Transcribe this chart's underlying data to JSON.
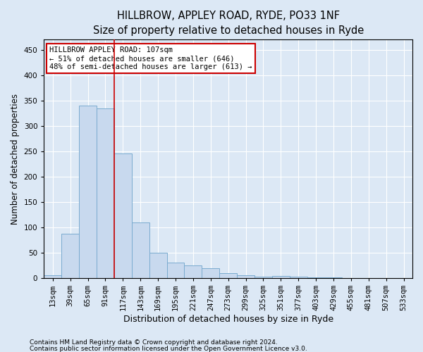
{
  "title": "HILLBROW, APPLEY ROAD, RYDE, PO33 1NF",
  "subtitle": "Size of property relative to detached houses in Ryde",
  "xlabel": "Distribution of detached houses by size in Ryde",
  "ylabel": "Number of detached properties",
  "footnote1": "Contains HM Land Registry data © Crown copyright and database right 2024.",
  "footnote2": "Contains public sector information licensed under the Open Government Licence v3.0.",
  "categories": [
    "13sqm",
    "39sqm",
    "65sqm",
    "91sqm",
    "117sqm",
    "143sqm",
    "169sqm",
    "195sqm",
    "221sqm",
    "247sqm",
    "273sqm",
    "299sqm",
    "325sqm",
    "351sqm",
    "377sqm",
    "403sqm",
    "429sqm",
    "455sqm",
    "481sqm",
    "507sqm",
    "533sqm"
  ],
  "values": [
    5,
    88,
    340,
    335,
    245,
    110,
    50,
    30,
    25,
    20,
    9,
    5,
    3,
    4,
    2,
    1,
    1,
    0,
    0,
    0,
    0
  ],
  "bar_color": "#c8d9ee",
  "bar_edge_color": "#7aabcf",
  "vline_color": "#cc0000",
  "vline_pos": 3.5,
  "annotation_line1": "HILLBROW APPLEY ROAD: 107sqm",
  "annotation_line2": "← 51% of detached houses are smaller (646)",
  "annotation_line3": "48% of semi-detached houses are larger (613) →",
  "annotation_box_color": "#ffffff",
  "annotation_box_edge": "#cc0000",
  "ylim": [
    0,
    470
  ],
  "yticks": [
    0,
    50,
    100,
    150,
    200,
    250,
    300,
    350,
    400,
    450
  ],
  "title_fontsize": 10.5,
  "xlabel_fontsize": 9,
  "ylabel_fontsize": 8.5,
  "tick_fontsize": 7.5,
  "annot_fontsize": 7.5,
  "footnote_fontsize": 6.5,
  "bg_color": "#dce8f5",
  "plot_bg_color": "#dce8f5"
}
